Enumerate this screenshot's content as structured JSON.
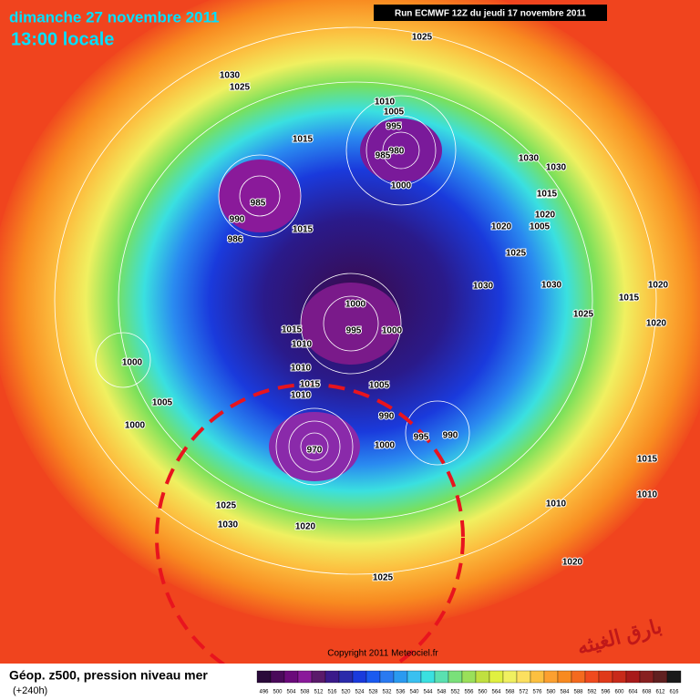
{
  "header": {
    "date": "dimanche 27 novembre 2011",
    "time": "13:00 locale",
    "run": "Run ECMWF 12Z du jeudi 17 novembre 2011"
  },
  "footer": {
    "product": "Géop. z500, pression niveau mer",
    "lead": "(+240h)",
    "copyright": "Copyright 2011 Meteociel.fr",
    "watermark": "بارق الغيثه"
  },
  "colorbar": {
    "labels": [
      496,
      500,
      504,
      508,
      512,
      516,
      520,
      524,
      528,
      532,
      536,
      540,
      544,
      548,
      552,
      556,
      560,
      564,
      568,
      572,
      576,
      580,
      584,
      588,
      592,
      596,
      600,
      604,
      608,
      612,
      616
    ]
  },
  "isobar_labels": [
    1025,
    1030,
    1025,
    1010,
    1005,
    995,
    980,
    985,
    1000,
    1015,
    985,
    990,
    986,
    1015,
    1000,
    995,
    1000,
    1030,
    1030,
    1015,
    1020,
    1005,
    1025,
    1020,
    1030,
    1030,
    1000,
    1005,
    1000,
    1015,
    1010,
    1010,
    1015,
    1010,
    1005,
    990,
    990,
    1000,
    995,
    970,
    1025,
    1030,
    1020,
    1010,
    1015,
    1020,
    1025,
    1010,
    1015,
    1020,
    1025,
    1020,
    1015
  ]
}
